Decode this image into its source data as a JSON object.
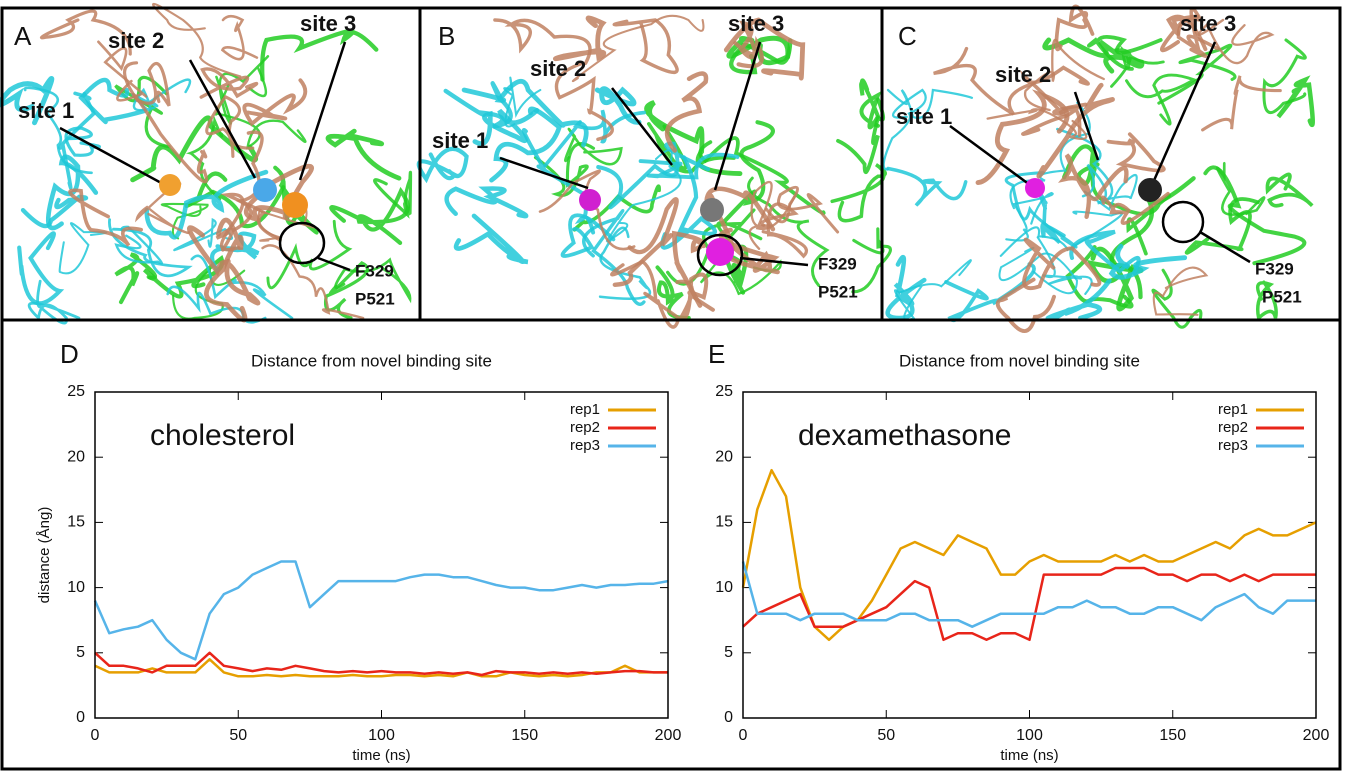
{
  "panels": [
    {
      "label": "A",
      "sites": [
        "site 1",
        "site 2",
        "site 3"
      ],
      "residues": [
        "F329",
        "P521"
      ]
    },
    {
      "label": "B",
      "sites": [
        "site 1",
        "site 2",
        "site 3"
      ],
      "residues": [
        "F329",
        "P521"
      ]
    },
    {
      "label": "C",
      "sites": [
        "site 1",
        "site 2",
        "site 3"
      ],
      "residues": [
        "F329",
        "P521"
      ]
    }
  ],
  "chart_data": [
    {
      "type": "line",
      "panel_label": "D",
      "title": "Distance from novel binding site",
      "annotation": "cholesterol",
      "x_label": "time (ns)",
      "y_label": "distance (Ång)",
      "x": [
        0,
        5,
        10,
        15,
        20,
        25,
        30,
        35,
        40,
        45,
        50,
        55,
        60,
        65,
        70,
        75,
        80,
        85,
        90,
        95,
        100,
        105,
        110,
        115,
        120,
        125,
        130,
        135,
        140,
        145,
        150,
        155,
        160,
        165,
        170,
        175,
        180,
        185,
        190,
        195,
        200
      ],
      "xlim": [
        0,
        200
      ],
      "xticks": [
        0,
        50,
        100,
        150,
        200
      ],
      "ylim": [
        0,
        25
      ],
      "yticks": [
        0,
        5,
        10,
        15,
        20,
        25
      ],
      "legend": "upper right",
      "series": [
        {
          "name": "rep1",
          "color": "#e69f00",
          "values": [
            4,
            3.5,
            3.5,
            3.5,
            3.8,
            3.5,
            3.5,
            3.5,
            4.5,
            3.5,
            3.2,
            3.2,
            3.3,
            3.2,
            3.3,
            3.2,
            3.2,
            3.2,
            3.3,
            3.2,
            3.2,
            3.3,
            3.3,
            3.2,
            3.3,
            3.2,
            3.5,
            3.2,
            3.2,
            3.5,
            3.3,
            3.2,
            3.3,
            3.2,
            3.3,
            3.5,
            3.5,
            4,
            3.5,
            3.5,
            3.5
          ]
        },
        {
          "name": "rep2",
          "color": "#e8251a",
          "values": [
            5,
            4,
            4,
            3.8,
            3.5,
            4,
            4,
            4,
            5,
            4,
            3.8,
            3.6,
            3.8,
            3.7,
            4,
            3.8,
            3.6,
            3.5,
            3.6,
            3.5,
            3.6,
            3.5,
            3.5,
            3.4,
            3.5,
            3.4,
            3.5,
            3.3,
            3.6,
            3.5,
            3.5,
            3.4,
            3.5,
            3.4,
            3.5,
            3.4,
            3.5,
            3.6,
            3.6,
            3.5,
            3.5
          ]
        },
        {
          "name": "rep3",
          "color": "#56b4e9",
          "values": [
            9,
            6.5,
            6.8,
            7,
            7.5,
            6,
            5,
            4.5,
            8,
            9.5,
            10,
            11,
            11.5,
            12,
            12,
            8.5,
            9.5,
            10.5,
            10.5,
            10.5,
            10.5,
            10.5,
            10.8,
            11,
            11,
            10.8,
            10.8,
            10.5,
            10.2,
            10,
            10,
            9.8,
            9.8,
            10,
            10.2,
            10,
            10.2,
            10.2,
            10.3,
            10.3,
            10.5
          ]
        }
      ]
    },
    {
      "type": "line",
      "panel_label": "E",
      "title": "Distance from novel binding site",
      "annotation": "dexamethasone",
      "x_label": "time (ns)",
      "x": [
        0,
        5,
        10,
        15,
        20,
        25,
        30,
        35,
        40,
        45,
        50,
        55,
        60,
        65,
        70,
        75,
        80,
        85,
        90,
        95,
        100,
        105,
        110,
        115,
        120,
        125,
        130,
        135,
        140,
        145,
        150,
        155,
        160,
        165,
        170,
        175,
        180,
        185,
        190,
        195,
        200
      ],
      "xlim": [
        0,
        200
      ],
      "xticks": [
        0,
        50,
        100,
        150,
        200
      ],
      "ylim": [
        0,
        25
      ],
      "yticks": [
        0,
        5,
        10,
        15,
        20,
        25
      ],
      "legend": "upper right",
      "series": [
        {
          "name": "rep1",
          "color": "#e69f00",
          "values": [
            10,
            16,
            19,
            17,
            10,
            7,
            6,
            7,
            7.5,
            9,
            11,
            13,
            13.5,
            13,
            12.5,
            14,
            13.5,
            13,
            11,
            11,
            12,
            12.5,
            12,
            12,
            12,
            12,
            12.5,
            12,
            12.5,
            12,
            12,
            12.5,
            13,
            13.5,
            13,
            14,
            14.5,
            14,
            14,
            14.5,
            15
          ]
        },
        {
          "name": "rep2",
          "color": "#e8251a",
          "values": [
            7,
            8,
            8.5,
            9,
            9.5,
            7,
            7,
            7,
            7.5,
            8,
            8.5,
            9.5,
            10.5,
            10,
            6,
            6.5,
            6.5,
            6,
            6.5,
            6.5,
            6,
            11,
            11,
            11,
            11,
            11,
            11.5,
            11.5,
            11.5,
            11,
            11,
            10.5,
            11,
            11,
            10.5,
            11,
            10.5,
            11,
            11,
            11,
            11
          ]
        },
        {
          "name": "rep3",
          "color": "#56b4e9",
          "values": [
            12,
            8,
            8,
            8,
            7.5,
            8,
            8,
            8,
            7.5,
            7.5,
            7.5,
            8,
            8,
            7.5,
            7.5,
            7.5,
            7,
            7.5,
            8,
            8,
            8,
            8,
            8.5,
            8.5,
            9,
            8.5,
            8.5,
            8,
            8,
            8.5,
            8.5,
            8,
            7.5,
            8.5,
            9,
            9.5,
            8.5,
            8,
            9,
            9,
            9
          ]
        }
      ]
    }
  ]
}
